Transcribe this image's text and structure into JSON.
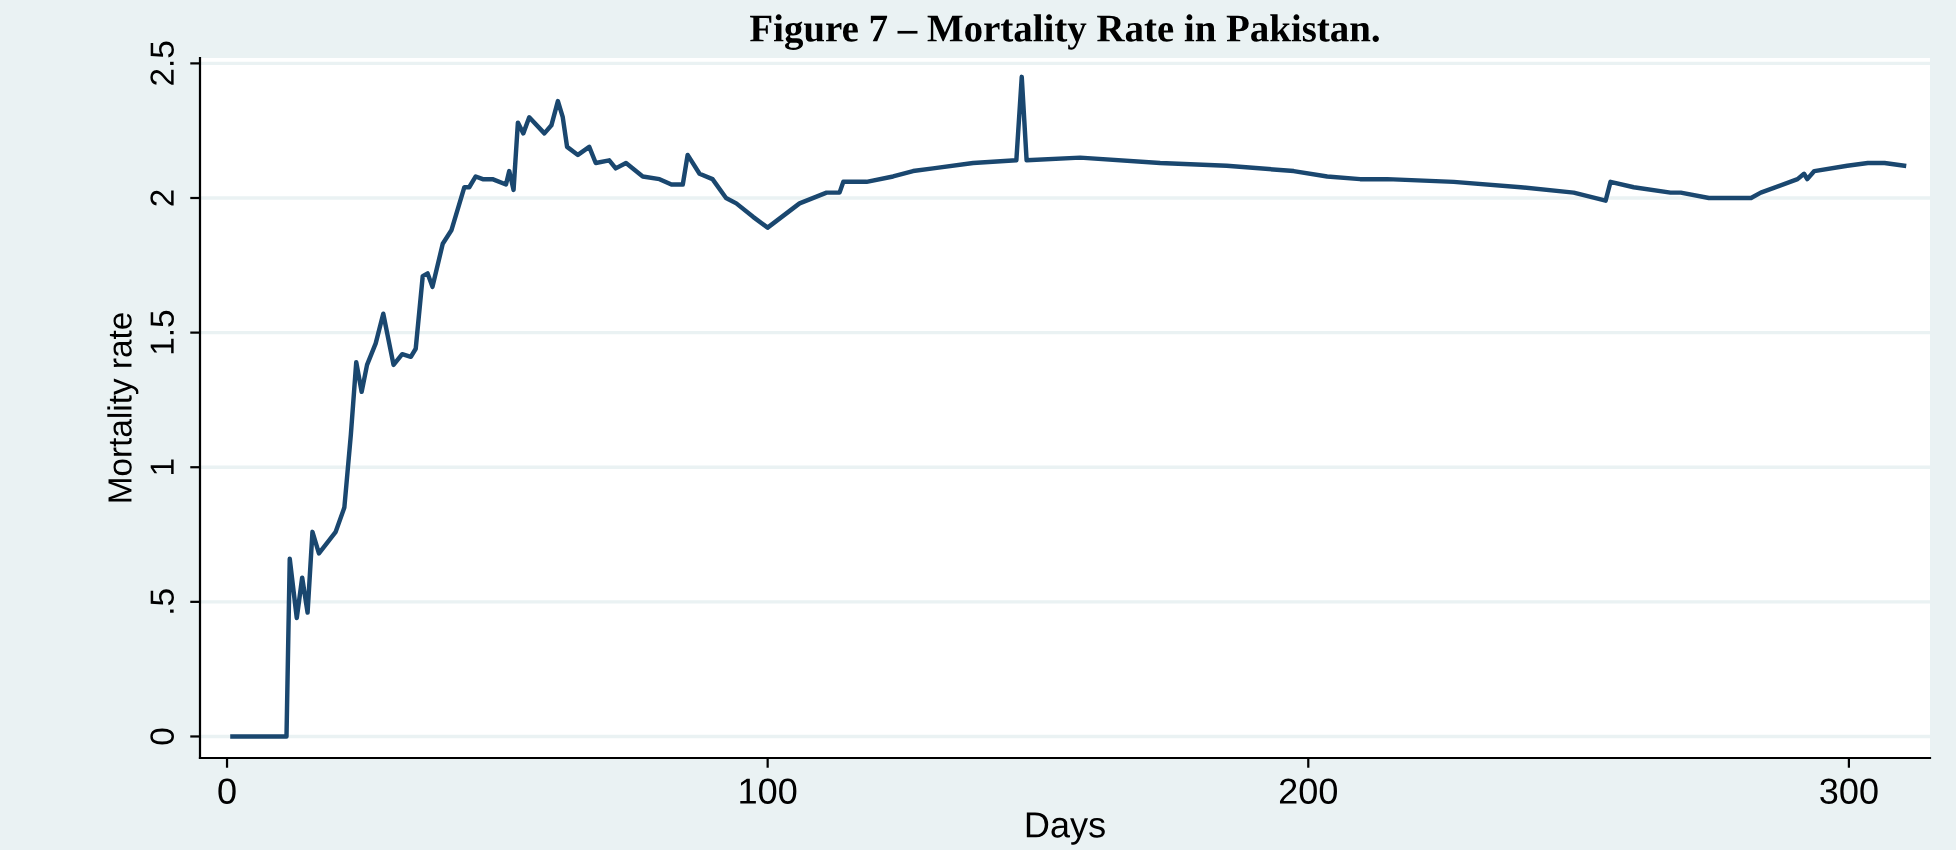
{
  "chart_data": {
    "type": "line",
    "title": "Figure 7 – Mortality Rate in Pakistan.",
    "xlabel": "Days",
    "ylabel": "Mortality rate",
    "xlim": [
      -5,
      315
    ],
    "xticks": [
      0,
      100,
      200,
      300
    ],
    "ylim": [
      -0.08,
      2.52
    ],
    "yticks": [
      0,
      {
        "value": 0.5,
        "label": ".5"
      },
      1,
      1.5,
      2,
      2.5
    ],
    "grid": "y",
    "marker": "none",
    "line_style": "solid",
    "series": [
      {
        "color": "#1a476f",
        "x": [
          1,
          11,
          11.6,
          12.9,
          13.9,
          14.9,
          15.8,
          17,
          20.1,
          21.7,
          22.9,
          23.9,
          24.9,
          25.9,
          27.5,
          28.9,
          30.8,
          32.4,
          34,
          34.9,
          36.2,
          37.1,
          38,
          39.9,
          41.5,
          43.9,
          44.8,
          46,
          47.3,
          49.1,
          51.6,
          52.2,
          53,
          53.8,
          54.8,
          55.9,
          58.7,
          60,
          61.2,
          62.1,
          62.9,
          64.9,
          67,
          68.2,
          70.7,
          71.9,
          73.8,
          76.9,
          80,
          82.2,
          84.3,
          85.2,
          87.4,
          89.8,
          92.3,
          94.2,
          97.3,
          100,
          105.9,
          110.9,
          113.3,
          114,
          118.3,
          123.2,
          126.9,
          130.6,
          138,
          146,
          147,
          147.9,
          157.8,
          172.6,
          184.9,
          197.3,
          203.5,
          209.6,
          214.6,
          226.9,
          239.3,
          249.1,
          255,
          255.9,
          260.2,
          267,
          268.9,
          274.1,
          276.3,
          281.9,
          283.7,
          290.5,
          291.7,
          292.3,
          293.6,
          299.7,
          303.5,
          306.6,
          310.2
        ],
        "values": [
          0,
          0,
          0.66,
          0.44,
          0.59,
          0.46,
          0.76,
          0.68,
          0.76,
          0.85,
          1.12,
          1.39,
          1.28,
          1.38,
          1.46,
          1.57,
          1.38,
          1.42,
          1.41,
          1.44,
          1.71,
          1.72,
          1.67,
          1.83,
          1.88,
          2.04,
          2.04,
          2.08,
          2.07,
          2.07,
          2.05,
          2.1,
          2.03,
          2.28,
          2.24,
          2.3,
          2.24,
          2.27,
          2.36,
          2.3,
          2.19,
          2.16,
          2.19,
          2.13,
          2.14,
          2.11,
          2.13,
          2.08,
          2.07,
          2.05,
          2.05,
          2.16,
          2.09,
          2.07,
          2.0,
          1.98,
          1.93,
          1.89,
          1.98,
          2.02,
          2.02,
          2.06,
          2.06,
          2.08,
          2.1,
          2.11,
          2.13,
          2.14,
          2.45,
          2.14,
          2.15,
          2.13,
          2.12,
          2.1,
          2.08,
          2.07,
          2.07,
          2.06,
          2.04,
          2.02,
          1.99,
          2.06,
          2.04,
          2.02,
          2.02,
          2.0,
          2.0,
          2.0,
          2.02,
          2.07,
          2.09,
          2.07,
          2.1,
          2.12,
          2.13,
          2.13,
          2.12
        ]
      }
    ]
  }
}
